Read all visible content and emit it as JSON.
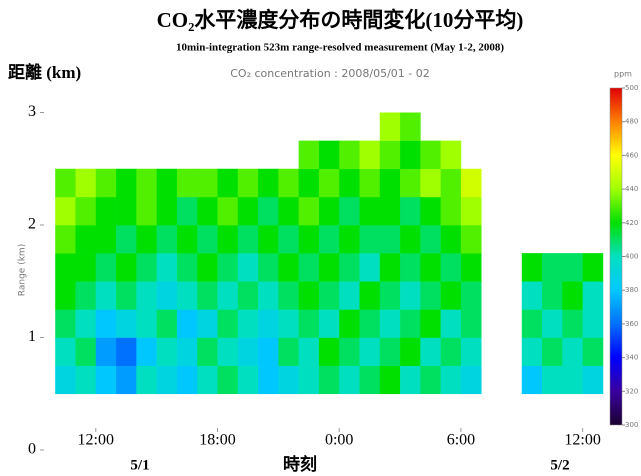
{
  "chart_data": {
    "type": "heatmap",
    "title": "CO₂水平濃度分布の時間変化(10分平均)",
    "subtitle": "10min-integration 523m range-resolved measurement (May 1-2, 2008)",
    "inner_title": "CO₂ concentration : 2008/05/01 - 02",
    "y_label": "距離 (km)",
    "inner_y_label": "Range (km)",
    "x_label": "時刻",
    "date_labels": [
      "5/1",
      "5/2"
    ],
    "xlim": [
      9.25,
      37.25
    ],
    "xticks": [
      {
        "value": 12,
        "label": "12:00"
      },
      {
        "value": 18,
        "label": "18:00"
      },
      {
        "value": 24,
        "label": "0:00"
      },
      {
        "value": 30,
        "label": "6:00"
      },
      {
        "value": 36,
        "label": "12:00"
      }
    ],
    "ylim": [
      0,
      3.2
    ],
    "yticks": [
      0,
      1,
      2,
      3
    ],
    "x_bins": [
      10,
      11,
      12,
      13,
      14,
      15,
      16,
      17,
      18,
      19,
      20,
      21,
      22,
      23,
      24,
      25,
      26,
      27,
      28,
      29,
      30,
      31,
      32,
      33,
      34,
      35,
      36,
      37
    ],
    "y_bins": [
      0.5,
      0.75,
      1,
      1.25,
      1.5,
      1.75,
      2,
      2.25,
      2.5,
      2.75,
      3
    ],
    "values": [
      [
        390,
        400,
        380,
        370,
        400,
        390,
        380,
        400,
        410,
        400,
        380,
        390,
        400,
        410,
        400,
        410,
        420,
        400,
        410,
        400,
        390,
        null,
        null,
        380,
        400,
        400,
        390
      ],
      [
        400,
        410,
        370,
        360,
        380,
        400,
        390,
        410,
        400,
        390,
        380,
        410,
        400,
        420,
        410,
        400,
        410,
        420,
        400,
        410,
        400,
        null,
        null,
        400,
        410,
        400,
        410
      ],
      [
        410,
        400,
        380,
        390,
        400,
        410,
        380,
        390,
        410,
        400,
        390,
        400,
        410,
        400,
        420,
        410,
        400,
        410,
        420,
        400,
        410,
        null,
        null,
        410,
        400,
        410,
        400
      ],
      [
        420,
        410,
        400,
        410,
        400,
        390,
        400,
        410,
        400,
        410,
        400,
        410,
        420,
        410,
        400,
        420,
        410,
        400,
        410,
        420,
        410,
        null,
        null,
        400,
        410,
        420,
        400
      ],
      [
        420,
        420,
        410,
        420,
        410,
        400,
        410,
        420,
        410,
        400,
        410,
        420,
        410,
        420,
        410,
        400,
        420,
        410,
        420,
        410,
        420,
        null,
        null,
        420,
        410,
        410,
        420
      ],
      [
        430,
        420,
        420,
        410,
        420,
        410,
        420,
        410,
        420,
        410,
        420,
        410,
        420,
        410,
        420,
        410,
        410,
        420,
        410,
        420,
        430,
        null,
        null,
        null,
        null,
        null,
        null
      ],
      [
        440,
        430,
        420,
        420,
        430,
        420,
        410,
        420,
        430,
        420,
        410,
        420,
        430,
        420,
        410,
        420,
        420,
        410,
        420,
        430,
        440,
        null,
        null,
        null,
        null,
        null,
        null
      ],
      [
        430,
        440,
        430,
        420,
        430,
        420,
        430,
        430,
        420,
        430,
        420,
        430,
        420,
        430,
        420,
        430,
        420,
        430,
        440,
        430,
        450,
        null,
        null,
        null,
        null,
        null,
        null
      ],
      [
        null,
        null,
        null,
        null,
        null,
        null,
        null,
        null,
        null,
        null,
        null,
        null,
        430,
        420,
        430,
        440,
        430,
        420,
        430,
        440,
        null,
        null,
        null,
        null,
        null,
        null,
        null
      ],
      [
        null,
        null,
        null,
        null,
        null,
        null,
        null,
        null,
        null,
        null,
        null,
        null,
        null,
        null,
        null,
        null,
        440,
        430,
        null,
        null,
        null,
        null,
        null,
        null,
        null,
        null,
        null
      ]
    ],
    "colorbar": {
      "label": "ppm",
      "lim": [
        300,
        500
      ],
      "ticks": [
        300,
        320,
        340,
        360,
        380,
        400,
        420,
        440,
        460,
        480,
        500
      ],
      "colors": [
        "#1a0030",
        "#3a00a0",
        "#0000ff",
        "#0070ff",
        "#00c8ff",
        "#00e0c0",
        "#00e000",
        "#a0ff00",
        "#ffff00",
        "#ff8000",
        "#e00000"
      ]
    }
  }
}
